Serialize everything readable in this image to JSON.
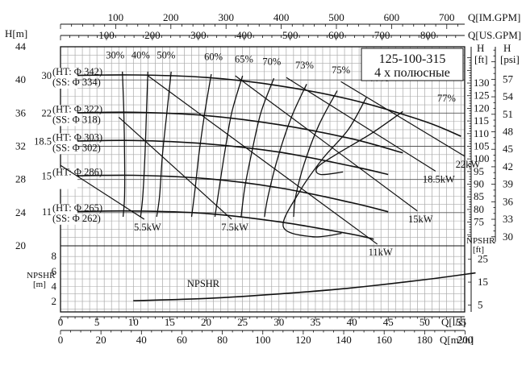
{
  "chart_data": {
    "type": "line",
    "title": "125-100-315",
    "subtitle": "4 x полюсные",
    "x_axes": {
      "ls_label": "Q[l/s]",
      "ls_ticks": [
        0,
        5,
        10,
        15,
        20,
        25,
        30,
        35,
        40,
        45,
        50,
        55
      ],
      "m3h_label": "Q[m³/h]",
      "m3h_ticks": [
        0,
        20,
        40,
        60,
        80,
        100,
        120,
        140,
        160,
        180,
        200
      ],
      "usgpm_label": "Q[US.GPM]",
      "usgpm_ticks": [
        100,
        200,
        300,
        400,
        500,
        600,
        700,
        800
      ],
      "imgpm_label": "Q[IM.GPM]",
      "imgpm_ticks": [
        100,
        200,
        300,
        400,
        500,
        600,
        700
      ]
    },
    "y_axes": {
      "head_m_label": "H[m]",
      "head_m_ticks": [
        20,
        24,
        28,
        32,
        36,
        40,
        44
      ],
      "head_m_range": [
        20,
        44
      ],
      "head_ft_label": [
        "H",
        "[ft]"
      ],
      "head_ft_ticks": [
        75,
        80,
        85,
        90,
        95,
        100,
        105,
        110,
        115,
        120,
        125,
        130
      ],
      "head_psi_label": [
        "H",
        "[psi]"
      ],
      "head_psi_ticks": [
        30,
        33,
        36,
        39,
        42,
        45,
        48,
        51,
        54,
        57
      ],
      "npshr_m_label": [
        "NPSHR",
        "[m]"
      ],
      "npshr_m_ticks": [
        2,
        4,
        6,
        8
      ],
      "npshr_ft_label": [
        "NPSHR",
        "[ft]"
      ],
      "npshr_ft_ticks": [
        5,
        15,
        25
      ]
    },
    "head_curves": [
      {
        "label": [
          "30",
          "(HT: Φ 342)",
          "(SS: Φ 334)"
        ],
        "points": [
          [
            0,
            40.5
          ],
          [
            10,
            40.6
          ],
          [
            20,
            40.3
          ],
          [
            30,
            39.3
          ],
          [
            40,
            37.6
          ],
          [
            50,
            35.0
          ],
          [
            55,
            33.2
          ]
        ]
      },
      {
        "label": [
          "22",
          "(HT: Φ 322)",
          "(SS: Φ 318)"
        ],
        "points": [
          [
            0,
            36.0
          ],
          [
            10,
            36.1
          ],
          [
            20,
            35.7
          ],
          [
            30,
            34.6
          ],
          [
            40,
            32.9
          ],
          [
            47,
            31.2
          ]
        ]
      },
      {
        "label": [
          "18.5",
          "(HT: Φ 303)",
          "(SS: Φ 302)"
        ],
        "points": [
          [
            0,
            32.6
          ],
          [
            10,
            32.7
          ],
          [
            20,
            32.3
          ],
          [
            30,
            31.3
          ],
          [
            40,
            29.6
          ],
          [
            45,
            28.6
          ]
        ]
      },
      {
        "label": [
          "15",
          "(HT: Φ 286)"
        ],
        "points": [
          [
            0,
            28.4
          ],
          [
            10,
            28.5
          ],
          [
            20,
            28.1
          ],
          [
            30,
            27.0
          ],
          [
            40,
            25.2
          ],
          [
            45,
            24.1
          ]
        ]
      },
      {
        "label": [
          "11",
          "(HT: Φ 265)",
          "(SS: Φ 262)"
        ],
        "points": [
          [
            0,
            24.1
          ],
          [
            10,
            24.2
          ],
          [
            20,
            23.9
          ],
          [
            30,
            22.9
          ],
          [
            40,
            21.4
          ],
          [
            43,
            20.8
          ]
        ]
      }
    ],
    "power_lines": [
      {
        "label": "5.5kW",
        "from": [
          0,
          29.7
        ],
        "to": [
          11.5,
          23.2
        ]
      },
      {
        "label": "7.5kW",
        "from": [
          8,
          35.5
        ],
        "to": [
          23.5,
          23.2
        ]
      },
      {
        "label": "11kW",
        "from": [
          12,
          40.5
        ],
        "to": [
          43.5,
          20.2
        ]
      },
      {
        "label": "15kW",
        "from": [
          24,
          40.5
        ],
        "to": [
          49,
          24.2
        ]
      },
      {
        "label": "18.5kW",
        "from": [
          31,
          40.3
        ],
        "to": [
          51.5,
          29.0
        ]
      },
      {
        "label": "22kW",
        "from": [
          38.5,
          39.8
        ],
        "to": [
          55.5,
          30.8
        ]
      }
    ],
    "efficiency_labels": [
      {
        "label": "30%",
        "q": 7.5,
        "h": 42.6
      },
      {
        "label": "40%",
        "q": 11,
        "h": 42.6
      },
      {
        "label": "50%",
        "q": 14.5,
        "h": 42.6
      },
      {
        "label": "60%",
        "q": 21,
        "h": 42.4
      },
      {
        "label": "65%",
        "q": 25.2,
        "h": 42.1
      },
      {
        "label": "70%",
        "q": 29,
        "h": 41.8
      },
      {
        "label": "73%",
        "q": 33.5,
        "h": 41.4
      },
      {
        "label": "75%",
        "q": 38.5,
        "h": 40.8
      },
      {
        "label": "77%",
        "q": 43.8,
        "h": 39.8
      },
      {
        "label": "77%",
        "q": 53,
        "h": 37.4
      }
    ],
    "npshr_curve": {
      "label": "NPSHR",
      "points": [
        [
          10,
          2.1
        ],
        [
          20,
          2.4
        ],
        [
          30,
          3.0
        ],
        [
          40,
          3.8
        ],
        [
          50,
          4.9
        ],
        [
          57,
          5.8
        ]
      ]
    },
    "grid": true
  }
}
